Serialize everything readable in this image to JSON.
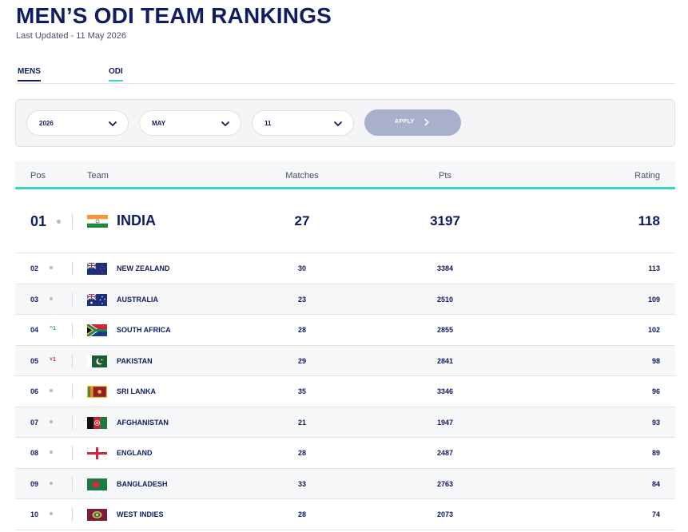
{
  "header": {
    "title": "MEN’S ODI TEAM RANKINGS",
    "last_updated": "Last Updated - 11 May 2026"
  },
  "tabs": [
    {
      "label": "MENS"
    },
    {
      "label": "ODI"
    }
  ],
  "filters": {
    "year": "2026",
    "month": "MAY",
    "day": "11",
    "apply_label": "APPLY"
  },
  "table": {
    "columns": {
      "pos": "Pos",
      "team": "Team",
      "matches": "Matches",
      "pts": "Pts",
      "rating": "Rating"
    },
    "top": {
      "pos": "01",
      "team": "INDIA",
      "matches": "27",
      "pts": "3197",
      "rating": "118",
      "flag": "india-flag"
    },
    "rows": [
      {
        "pos": "02",
        "team": "NEW ZEALAND",
        "matches": "30",
        "pts": "3384",
        "rating": "113",
        "move": "",
        "flag": "new-zealand-flag"
      },
      {
        "pos": "03",
        "team": "AUSTRALIA",
        "matches": "23",
        "pts": "2510",
        "rating": "109",
        "move": "",
        "flag": "australia-flag"
      },
      {
        "pos": "04",
        "team": "SOUTH AFRICA",
        "matches": "28",
        "pts": "2855",
        "rating": "102",
        "move": "^1",
        "move_dir": "up",
        "flag": "south-africa-flag"
      },
      {
        "pos": "05",
        "team": "PAKISTAN",
        "matches": "29",
        "pts": "2841",
        "rating": "98",
        "move": "˅1",
        "move_dir": "down",
        "flag": "pakistan-flag"
      },
      {
        "pos": "06",
        "team": "SRI LANKA",
        "matches": "35",
        "pts": "3346",
        "rating": "96",
        "move": "",
        "flag": "sri-lanka-flag"
      },
      {
        "pos": "07",
        "team": "AFGHANISTAN",
        "matches": "21",
        "pts": "1947",
        "rating": "93",
        "move": "",
        "flag": "afghanistan-flag"
      },
      {
        "pos": "08",
        "team": "ENGLAND",
        "matches": "28",
        "pts": "2487",
        "rating": "89",
        "move": "",
        "flag": "england-flag"
      },
      {
        "pos": "09",
        "team": "BANGLADESH",
        "matches": "33",
        "pts": "2763",
        "rating": "84",
        "move": "",
        "flag": "bangladesh-flag"
      },
      {
        "pos": "10",
        "team": "WEST INDIES",
        "matches": "28",
        "pts": "2073",
        "rating": "74",
        "move": "",
        "flag": "west-indies-flag"
      }
    ]
  },
  "colors": {
    "navy": "#101d62",
    "teal_accent": "#3fd3c8",
    "up": "#2bb14a",
    "down": "#d9264a",
    "apply_button": "#a9b0cb"
  }
}
